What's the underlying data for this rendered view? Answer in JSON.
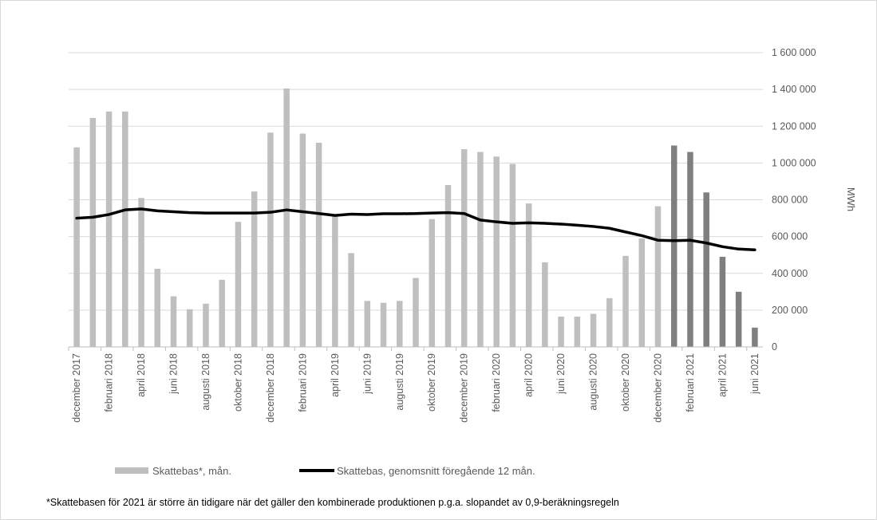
{
  "chart_data": {
    "type": "bar",
    "title": "",
    "ylabel": "MWh",
    "ylim": [
      0,
      1600000
    ],
    "yticks": [
      0,
      200000,
      400000,
      600000,
      800000,
      1000000,
      1200000,
      1400000,
      1600000
    ],
    "ytick_labels": [
      "0",
      "200 000",
      "400 000",
      "600 000",
      "800 000",
      "1 000 000",
      "1 200 000",
      "1 400 000",
      "1 600 000"
    ],
    "grid": true,
    "legend_position": "bottom",
    "categories": [
      "dec 2017",
      "jan 2018",
      "feb 2018",
      "mar 2018",
      "apr 2018",
      "maj 2018",
      "jun 2018",
      "jul 2018",
      "aug 2018",
      "sep 2018",
      "okt 2018",
      "nov 2018",
      "dec 2018",
      "jan 2019",
      "feb 2019",
      "mar 2019",
      "apr 2019",
      "maj 2019",
      "jun 2019",
      "jul 2019",
      "aug 2019",
      "sep 2019",
      "okt 2019",
      "nov 2019",
      "dec 2019",
      "jan 2020",
      "feb 2020",
      "mar 2020",
      "apr 2020",
      "maj 2020",
      "jun 2020",
      "jul 2020",
      "aug 2020",
      "sep 2020",
      "okt 2020",
      "nov 2020",
      "dec 2020",
      "jan 2021",
      "feb 2021",
      "mar 2021",
      "apr 2021",
      "maj 2021",
      "jun 2021"
    ],
    "xtick_labels": [
      {
        "index": 0,
        "label": "december 2017"
      },
      {
        "index": 2,
        "label": "februari 2018"
      },
      {
        "index": 4,
        "label": "april 2018"
      },
      {
        "index": 6,
        "label": "juni 2018"
      },
      {
        "index": 8,
        "label": "augusti 2018"
      },
      {
        "index": 10,
        "label": "oktober 2018"
      },
      {
        "index": 12,
        "label": "december 2018"
      },
      {
        "index": 14,
        "label": "februari 2019"
      },
      {
        "index": 16,
        "label": "april 2019"
      },
      {
        "index": 18,
        "label": "juni 2019"
      },
      {
        "index": 20,
        "label": "augusti 2019"
      },
      {
        "index": 22,
        "label": "oktober 2019"
      },
      {
        "index": 24,
        "label": "december 2019"
      },
      {
        "index": 26,
        "label": "februari 2020"
      },
      {
        "index": 28,
        "label": "april 2020"
      },
      {
        "index": 30,
        "label": "juni 2020"
      },
      {
        "index": 32,
        "label": "augusti 2020"
      },
      {
        "index": 34,
        "label": "oktober 2020"
      },
      {
        "index": 36,
        "label": "december 2020"
      },
      {
        "index": 38,
        "label": "februari 2021"
      },
      {
        "index": 40,
        "label": "april 2021"
      },
      {
        "index": 42,
        "label": "juni 2021"
      }
    ],
    "series": [
      {
        "name": "Skattebas*, mån.",
        "type": "bar",
        "color": "#bfbfbf",
        "highlight_color": "#7f7f7f",
        "highlight_from_index": 37,
        "values": [
          1085000,
          1245000,
          1280000,
          1280000,
          810000,
          425000,
          275000,
          205000,
          235000,
          365000,
          680000,
          845000,
          1165000,
          1405000,
          1160000,
          1110000,
          715000,
          510000,
          250000,
          240000,
          250000,
          375000,
          695000,
          880000,
          1075000,
          1060000,
          1035000,
          995000,
          780000,
          460000,
          165000,
          165000,
          180000,
          265000,
          495000,
          590000,
          765000,
          1095000,
          1060000,
          840000,
          490000,
          300000,
          105000
        ]
      },
      {
        "name": "Skattebas, genomsnitt föregående 12 mån.",
        "type": "line",
        "color": "#000000",
        "values": [
          700000,
          705000,
          720000,
          745000,
          750000,
          740000,
          735000,
          730000,
          728000,
          728000,
          728000,
          728000,
          732000,
          745000,
          735000,
          725000,
          715000,
          722000,
          720000,
          724000,
          724000,
          725000,
          728000,
          730000,
          725000,
          690000,
          680000,
          672000,
          675000,
          672000,
          668000,
          662000,
          655000,
          645000,
          625000,
          605000,
          580000,
          578000,
          580000,
          565000,
          545000,
          532000,
          528000
        ]
      }
    ],
    "footnote": "*Skattebasen för 2021 är större än tidigare när det gäller den kombinerade produktionen p.g.a. slopandet av 0,9-beräkningsregeln"
  }
}
